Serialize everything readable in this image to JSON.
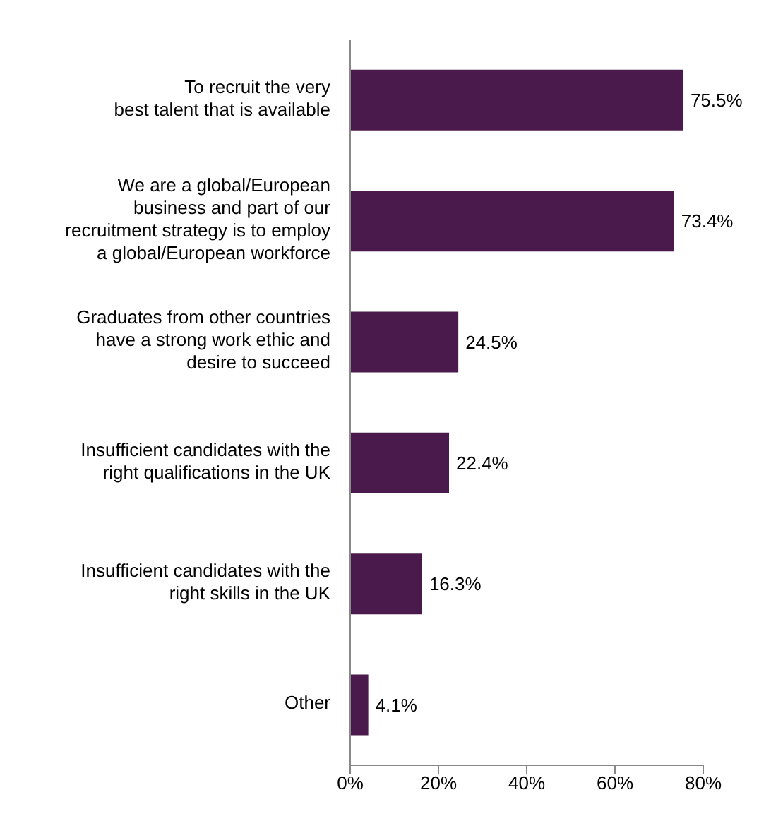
{
  "chart_data": {
    "type": "bar",
    "orientation": "horizontal",
    "categories": [
      "To recruit the very\nbest talent that is available",
      "We are a global/European\nbusiness and part of our\nrecruitment strategy is to employ\na global/European workforce",
      "Graduates from other countries\nhave a strong work ethic and\ndesire to succeed",
      "Insufficient candidates with the\nright qualifications in the UK",
      "Insufficient candidates with the\nright skills in the UK",
      "Other"
    ],
    "values": [
      75.5,
      73.4,
      24.5,
      22.4,
      16.3,
      4.1
    ],
    "value_labels": [
      "75.5%",
      "73.4%",
      "24.5%",
      "22.4%",
      "16.3%",
      "4.1%"
    ],
    "color": "#4a1a4c",
    "xlim": [
      0,
      80
    ],
    "xticks": [
      {
        "value": 0,
        "label": "0%"
      },
      {
        "value": 20,
        "label": "20%"
      },
      {
        "value": 40,
        "label": "40%"
      },
      {
        "value": 60,
        "label": "60%"
      },
      {
        "value": 80,
        "label": "80%"
      }
    ],
    "grid": false,
    "legend": false
  }
}
